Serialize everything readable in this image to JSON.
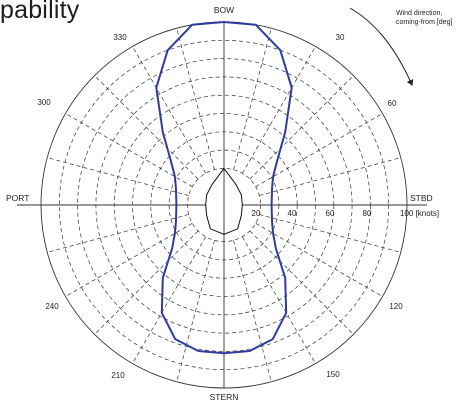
{
  "page": {
    "title_fragment": "pability"
  },
  "chart_data": {
    "type": "polar-line",
    "direction_labels": {
      "bow": "BOW",
      "stern": "STERN",
      "port": "PORT",
      "stbd": "STBD"
    },
    "angle_labels": [
      "30",
      "60",
      "120",
      "150",
      "210",
      "240",
      "300",
      "330"
    ],
    "radial_tick_labels": [
      "20",
      "40",
      "60",
      "80",
      "100 [knots]"
    ],
    "radial_ticks": [
      20,
      40,
      60,
      80,
      100
    ],
    "r_range": [
      0,
      100
    ],
    "wind_annotation": [
      "Wind direction,",
      "coming-from [deg]"
    ],
    "colors": {
      "envelope": "#2e3d9c",
      "grid": "#333333",
      "hull": "#111111"
    },
    "grid_rings_dashed": [
      20,
      30,
      40,
      50,
      60,
      70,
      80,
      90
    ],
    "grid_ring_solid": 100,
    "spoke_step_deg": 15,
    "capability_envelope": {
      "angles_deg": [
        0,
        10,
        20,
        30,
        40,
        50,
        60,
        70,
        80,
        90,
        100,
        110,
        120,
        130,
        140,
        150,
        160,
        170,
        180,
        190,
        200,
        210,
        220,
        230,
        240,
        250,
        260,
        270,
        280,
        290,
        300,
        310,
        320,
        330,
        340,
        350
      ],
      "speed_knots": [
        100,
        100,
        90,
        74,
        52,
        38,
        31,
        28,
        26.5,
        26,
        26.5,
        28,
        31,
        37,
        52,
        68,
        78,
        81,
        81,
        81,
        78,
        68,
        52,
        37,
        31,
        28,
        26.5,
        26,
        26.5,
        28,
        31,
        38,
        52,
        74,
        90,
        100
      ]
    },
    "hull_outline": [
      [
        0,
        20
      ],
      [
        30,
        13
      ],
      [
        60,
        11
      ],
      [
        90,
        10
      ],
      [
        120,
        11
      ],
      [
        150,
        15
      ],
      [
        180,
        16
      ],
      [
        210,
        15
      ],
      [
        240,
        11
      ],
      [
        270,
        10
      ],
      [
        300,
        11
      ],
      [
        330,
        13
      ]
    ]
  }
}
